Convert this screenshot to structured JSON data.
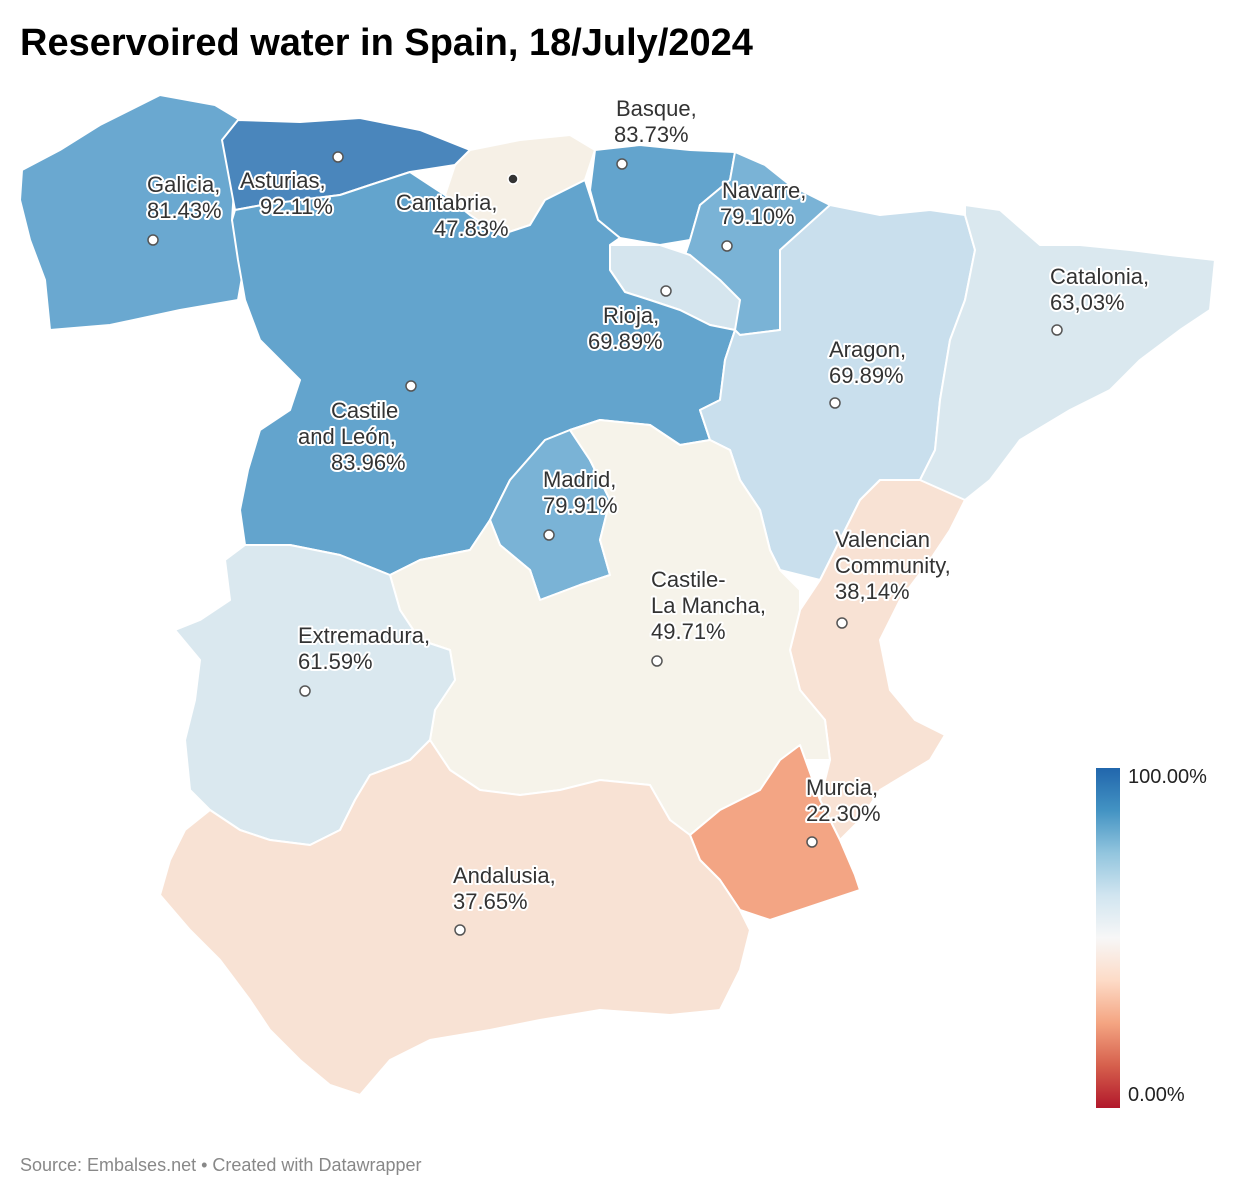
{
  "title": "Reservoired water in Spain, 18/July/2024",
  "footer": "Source: Embalses.net • Created with Datawrapper",
  "legend": {
    "max_label": "100.00%",
    "min_label": "0.00%",
    "scale": "diverging red-blue, 0% red to 100% blue"
  },
  "colors": {
    "very_high": "#4a86bc",
    "high": "#63a4cd",
    "mid_high": "#7ab3d6",
    "light_blue": "#c9dfed",
    "pale_blue": "#dae8ef",
    "neutral": "#f6f3ea",
    "pale_orange": "#f8e2d4",
    "orange": "#f3a584"
  },
  "regions": [
    {
      "name": "Galicia,",
      "value": "81.43%"
    },
    {
      "name": "Asturias,",
      "value": "92.11%"
    },
    {
      "name": "Cantabria,",
      "value": "47.83%"
    },
    {
      "name": "Basque,",
      "value": "83.73%"
    },
    {
      "name": "Navarre,",
      "value": "79.10%"
    },
    {
      "name": "Catalonia,",
      "value": "63,03%"
    },
    {
      "name": "Rioja,",
      "value": "69.89%"
    },
    {
      "name": "Aragon,",
      "value": "69.89%"
    },
    {
      "name_line1": "Castile",
      "name_line2": "and León,",
      "value": "83.96%"
    },
    {
      "name": "Madrid,",
      "value": "79.91%"
    },
    {
      "name_line1": "Valencian",
      "name_line2": "Community,",
      "value": "38,14%"
    },
    {
      "name_line1": "Castile-",
      "name_line2": "La Mancha,",
      "value": "49.71%"
    },
    {
      "name": "Extremadura,",
      "value": "61.59%"
    },
    {
      "name": "Murcia,",
      "value": "22.30%"
    },
    {
      "name": "Andalusia,",
      "value": "37.65%"
    }
  ]
}
